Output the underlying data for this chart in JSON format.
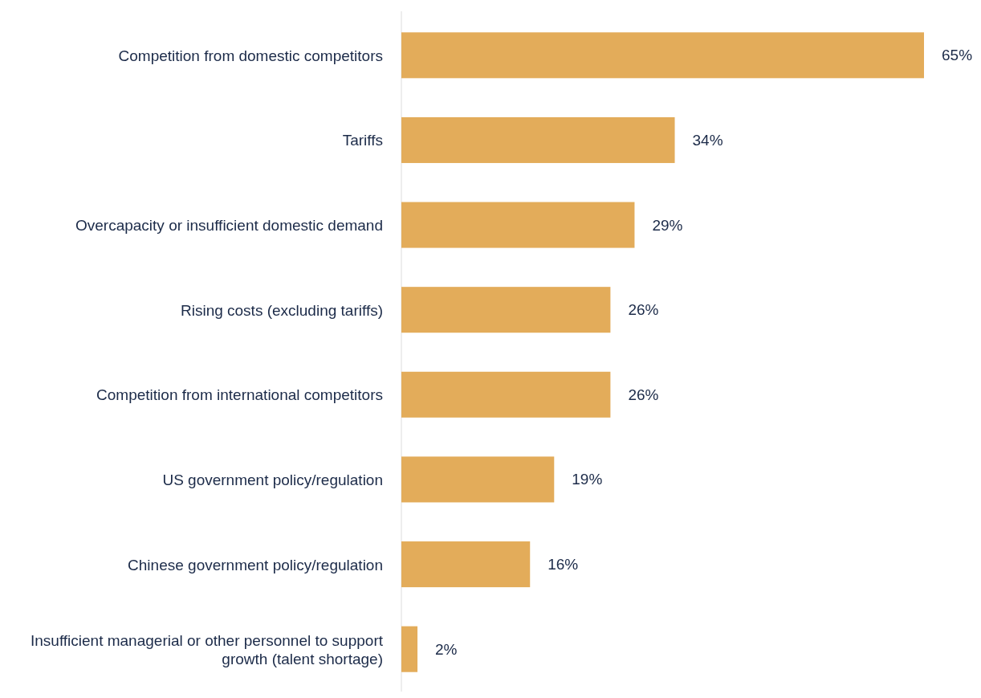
{
  "chart_data": {
    "type": "bar",
    "orientation": "horizontal",
    "categories": [
      "Competition from domestic competitors",
      "Tariffs",
      "Overcapacity or insufficient domestic demand",
      "Rising costs (excluding tariffs)",
      "Competition from international competitors",
      "US government policy/regulation",
      "Chinese government policy/regulation",
      "Insufficient managerial or other personnel to support growth (talent shortage)"
    ],
    "values": [
      65,
      34,
      29,
      26,
      26,
      19,
      16,
      2
    ],
    "value_labels": [
      "65%",
      "34%",
      "29%",
      "26%",
      "26%",
      "19%",
      "16%",
      "2%"
    ],
    "color": "#e3ac5a"
  }
}
